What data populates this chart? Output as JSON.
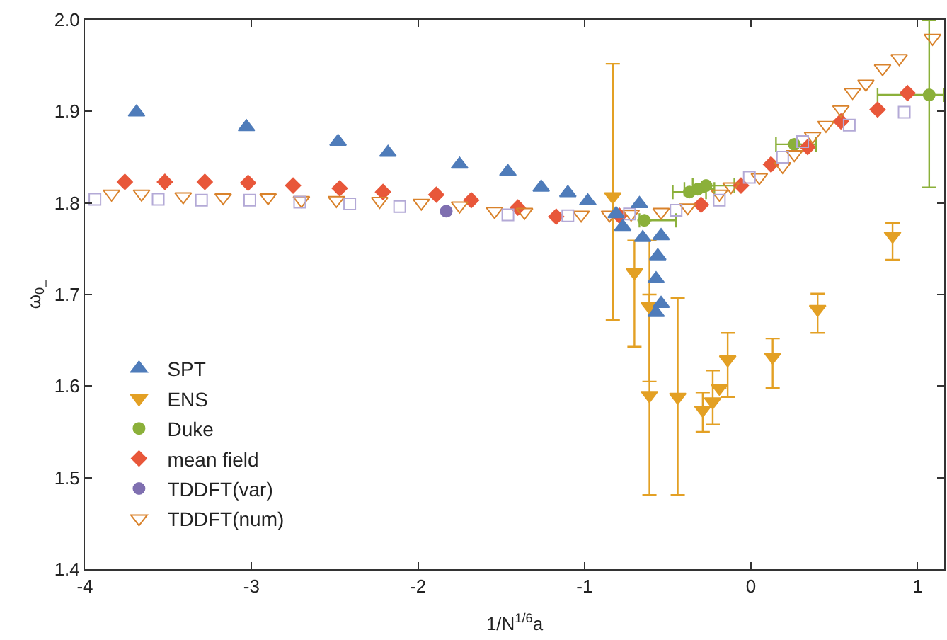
{
  "chart_data": {
    "type": "scatter",
    "xlabel": "1/N$^{1/6}$a",
    "ylabel": "ω$_{0_}$",
    "xlim": [
      -4,
      1.16
    ],
    "ylim": [
      1.4,
      2.0
    ],
    "xticks": [
      -4,
      -3,
      -2,
      -1,
      0,
      1
    ],
    "yticks": [
      1.4,
      1.5,
      1.6,
      1.7,
      1.8,
      1.9,
      {
        "value": 2.0,
        "label": "2.0"
      }
    ],
    "legend": "left",
    "series": [
      {
        "name": "SPT",
        "color": "#4f7cba",
        "marker": "triangle-up",
        "x": [
          -3.69,
          -3.03,
          -2.48,
          -2.18,
          -1.75,
          -1.46,
          -1.26,
          -1.1,
          -0.98,
          -0.81,
          -0.67,
          -0.77,
          -0.65,
          -0.54,
          -0.56,
          -0.57,
          -0.54,
          -0.57
        ],
        "values": [
          1.899,
          1.883,
          1.867,
          1.855,
          1.842,
          1.834,
          1.817,
          1.811,
          1.802,
          1.788,
          1.799,
          1.774,
          1.762,
          1.764,
          1.742,
          1.717,
          1.69,
          1.68
        ]
      },
      {
        "name": "ENS",
        "color": "#e3a024",
        "marker": "triangle-down",
        "x": [
          -0.83,
          -0.7,
          -0.61,
          -0.61,
          -0.44,
          -0.29,
          -0.23,
          -0.19,
          -0.14,
          0.13,
          0.4,
          0.85
        ],
        "values": [
          1.807,
          1.724,
          1.687,
          1.59,
          1.588,
          1.574,
          1.583,
          1.598,
          1.629,
          1.632,
          1.684,
          1.764
        ],
        "errors": [
          [
            1.672,
            1.952
          ],
          [
            1.643,
            1.759
          ],
          [
            1.605,
            1.7
          ],
          [
            1.481,
            1.759
          ],
          [
            1.481,
            1.696
          ],
          [
            1.55,
            1.593
          ],
          [
            1.558,
            1.617
          ],
          null,
          [
            1.588,
            1.658
          ],
          [
            1.598,
            1.652
          ],
          [
            1.658,
            1.701
          ],
          [
            1.738,
            1.778
          ]
        ]
      },
      {
        "name": "Duke",
        "color": "#8bb03a",
        "marker": "circle",
        "x": [
          -0.64,
          -0.37,
          -0.32,
          -0.27,
          0.26,
          1.07
        ],
        "values": [
          1.781,
          1.812,
          1.815,
          1.819,
          1.864,
          1.918
        ],
        "errors": [
          null,
          null,
          null,
          null,
          null,
          [
            1.817,
            2.0
          ]
        ],
        "xerrors": [
          [
            -0.67,
            -0.45
          ],
          [
            -0.47,
            -0.27
          ],
          [
            -0.4,
            -0.22
          ],
          [
            -0.35,
            -0.1
          ],
          [
            0.15,
            0.39
          ],
          [
            0.76,
            1.16
          ]
        ]
      },
      {
        "name": "mean field",
        "color": "#e8573a",
        "marker": "diamond",
        "x": [
          -3.76,
          -3.52,
          -3.28,
          -3.02,
          -2.75,
          -2.47,
          -2.21,
          -1.89,
          -1.68,
          -1.4,
          -1.17,
          -0.79,
          -0.3,
          -0.06,
          0.12,
          0.34,
          0.54,
          0.76,
          0.94
        ],
        "values": [
          1.823,
          1.823,
          1.823,
          1.822,
          1.819,
          1.816,
          1.812,
          1.809,
          1.803,
          1.795,
          1.785,
          1.786,
          1.798,
          1.819,
          1.842,
          1.861,
          1.889,
          1.902,
          1.92
        ]
      },
      {
        "name": "TDDFT(var)",
        "color": "#7f6fb0",
        "marker": "circle",
        "x": [
          -1.83
        ],
        "values": [
          1.791
        ]
      },
      {
        "name": "TDDFT(num)",
        "color": "#d9822b",
        "marker": "triangle-down-open",
        "x": [
          -3.84,
          -3.66,
          -3.41,
          -3.17,
          -2.9,
          -2.7,
          -2.49,
          -2.23,
          -1.98,
          -1.75,
          -1.54,
          -1.36,
          -1.02,
          -0.85,
          -0.72,
          -0.54,
          -0.38,
          -0.19,
          -0.12,
          0.05,
          0.19,
          0.26,
          0.37,
          0.45,
          0.54,
          0.61,
          0.69,
          0.79,
          0.89,
          1.09
        ],
        "values": [
          1.81,
          1.81,
          1.807,
          1.806,
          1.806,
          1.803,
          1.803,
          1.802,
          1.8,
          1.797,
          1.791,
          1.79,
          1.787,
          1.787,
          1.788,
          1.79,
          1.795,
          1.81,
          1.818,
          1.828,
          1.84,
          1.853,
          1.873,
          1.885,
          1.902,
          1.921,
          1.93,
          1.947,
          1.958,
          1.98
        ]
      },
      {
        "color": "#b3a9d6",
        "marker": "square-open",
        "x": [
          -3.94,
          -3.56,
          -3.3,
          -3.01,
          -2.71,
          -2.41,
          -2.11,
          -1.46,
          -1.1,
          -0.73,
          -0.45,
          -0.19,
          -0.01,
          0.19,
          0.31,
          0.59,
          0.92
        ],
        "values": [
          1.804,
          1.804,
          1.803,
          1.803,
          1.801,
          1.799,
          1.796,
          1.787,
          1.786,
          1.788,
          1.792,
          1.803,
          1.828,
          1.85,
          1.867,
          1.885,
          1.899
        ]
      }
    ]
  }
}
